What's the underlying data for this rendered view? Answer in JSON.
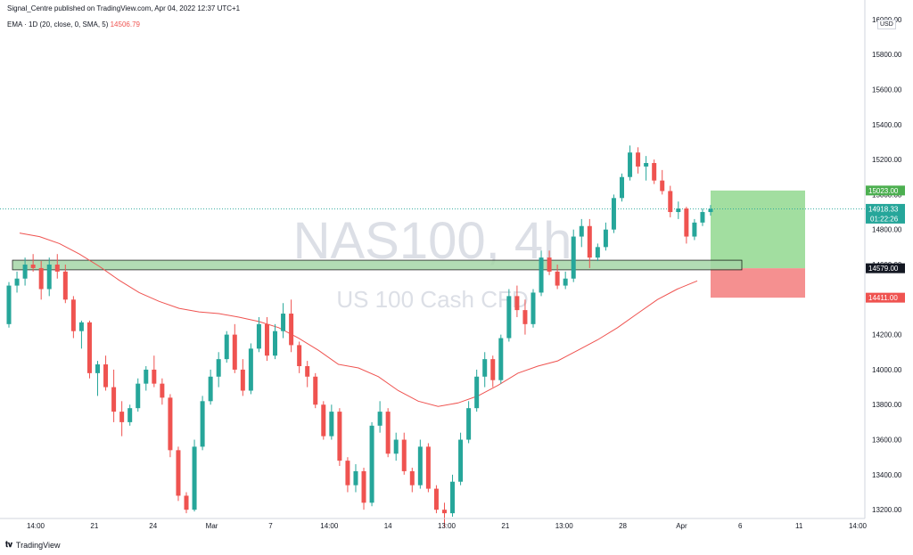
{
  "header": {
    "published": "Signal_Centre published on TradingView.com, Apr 04, 2022 12:37 UTC+1"
  },
  "indicator": {
    "label": "EMA · 1D (20, close, 0, SMA, 5)",
    "value": "14506.79"
  },
  "watermark": {
    "symbol": "NAS100, 4h",
    "name": "US 100 Cash CFD"
  },
  "price_axis": {
    "unit": "USD",
    "ticks": [
      "16000.00",
      "15800.00",
      "15600.00",
      "15400.00",
      "15200.00",
      "15000.00",
      "14800.00",
      "14600.00",
      "14400.00",
      "14200.00",
      "14000.00",
      "13800.00",
      "13600.00",
      "13400.00",
      "13200.00"
    ]
  },
  "time_axis": {
    "ticks": [
      "14:00",
      "21",
      "24",
      "Mar",
      "7",
      "14:00",
      "14",
      "13:00",
      "21",
      "13:00",
      "28",
      "Apr",
      "6",
      "11",
      "14:00"
    ]
  },
  "price_labels": {
    "target": "15023.00",
    "current": "14918.33",
    "countdown": "01:22:26",
    "entry": "14579.00",
    "stop": "14411.00"
  },
  "footer": {
    "brand": "TradingView"
  },
  "colors": {
    "up": "#26a69a",
    "down": "#ef5350",
    "ema": "#ef5350",
    "zone_fill": "#a5d6a7",
    "target_fill": "#9ddc9b",
    "stop_fill": "#f48a8a",
    "price_line": "#26a69a"
  },
  "chart_data": {
    "type": "candlestick",
    "symbol": "NAS100",
    "timeframe": "4h",
    "ylim": [
      13150,
      16050
    ],
    "levels": {
      "target": 15023,
      "current": 14918.33,
      "entry": 14579,
      "stop": 14411,
      "zone_low": 14570,
      "zone_high": 14625
    },
    "ema_1d_20": [
      14780,
      14760,
      14720,
      14660,
      14590,
      14510,
      14440,
      14390,
      14350,
      14330,
      14320,
      14300,
      14275,
      14240,
      14180,
      14110,
      14030,
      14010,
      13960,
      13880,
      13820,
      13790,
      13810,
      13850,
      13910,
      13980,
      14020,
      14050,
      14110,
      14170,
      14240,
      14320,
      14400,
      14460,
      14507
    ],
    "candles": [
      [
        14260,
        14500,
        14240,
        14480
      ],
      [
        14480,
        14560,
        14440,
        14520
      ],
      [
        14520,
        14640,
        14480,
        14600
      ],
      [
        14600,
        14660,
        14560,
        14580
      ],
      [
        14580,
        14620,
        14400,
        14460
      ],
      [
        14460,
        14640,
        14420,
        14600
      ],
      [
        14600,
        14660,
        14520,
        14560
      ],
      [
        14560,
        14600,
        14380,
        14400
      ],
      [
        14400,
        14420,
        14180,
        14220
      ],
      [
        14220,
        14280,
        14120,
        14270
      ],
      [
        14270,
        14280,
        13950,
        13980
      ],
      [
        13980,
        14050,
        13850,
        14030
      ],
      [
        14030,
        14080,
        13880,
        13900
      ],
      [
        13900,
        14000,
        13700,
        13760
      ],
      [
        13760,
        13820,
        13620,
        13700
      ],
      [
        13700,
        13800,
        13680,
        13780
      ],
      [
        13780,
        13950,
        13760,
        13920
      ],
      [
        13920,
        14020,
        13880,
        14000
      ],
      [
        14000,
        14080,
        13900,
        13920
      ],
      [
        13920,
        13950,
        13800,
        13840
      ],
      [
        13840,
        13860,
        13500,
        13540
      ],
      [
        13540,
        13560,
        13250,
        13280
      ],
      [
        13280,
        13300,
        13180,
        13200
      ],
      [
        13200,
        13600,
        13190,
        13560
      ],
      [
        13560,
        13850,
        13540,
        13820
      ],
      [
        13820,
        14000,
        13800,
        13960
      ],
      [
        13960,
        14100,
        13900,
        14060
      ],
      [
        14060,
        14220,
        14040,
        14200
      ],
      [
        14200,
        14260,
        13980,
        14000
      ],
      [
        14000,
        14060,
        13850,
        13880
      ],
      [
        13880,
        14150,
        13860,
        14120
      ],
      [
        14120,
        14300,
        14100,
        14260
      ],
      [
        14260,
        14300,
        14050,
        14080
      ],
      [
        14080,
        14260,
        14060,
        14220
      ],
      [
        14220,
        14380,
        14180,
        14320
      ],
      [
        14320,
        14400,
        14100,
        14140
      ],
      [
        14140,
        14160,
        13980,
        14020
      ],
      [
        14020,
        14050,
        13900,
        13960
      ],
      [
        13960,
        13980,
        13780,
        13800
      ],
      [
        13800,
        13820,
        13600,
        13620
      ],
      [
        13620,
        13800,
        13600,
        13760
      ],
      [
        13760,
        13780,
        13450,
        13480
      ],
      [
        13480,
        13500,
        13300,
        13340
      ],
      [
        13340,
        13460,
        13300,
        13420
      ],
      [
        13420,
        13440,
        13200,
        13240
      ],
      [
        13240,
        13700,
        13220,
        13680
      ],
      [
        13680,
        13820,
        13640,
        13760
      ],
      [
        13760,
        13780,
        13500,
        13520
      ],
      [
        13520,
        13640,
        13480,
        13600
      ],
      [
        13600,
        13640,
        13400,
        13420
      ],
      [
        13420,
        13440,
        13300,
        13340
      ],
      [
        13340,
        13600,
        13320,
        13560
      ],
      [
        13560,
        13580,
        13300,
        13320
      ],
      [
        13320,
        13340,
        13180,
        13200
      ],
      [
        13200,
        13240,
        13100,
        13180
      ],
      [
        13180,
        13400,
        13160,
        13360
      ],
      [
        13360,
        13640,
        13340,
        13600
      ],
      [
        13600,
        13820,
        13580,
        13780
      ],
      [
        13780,
        14000,
        13760,
        13960
      ],
      [
        13960,
        14100,
        13900,
        14060
      ],
      [
        14060,
        14080,
        13900,
        13940
      ],
      [
        13940,
        14200,
        13920,
        14180
      ],
      [
        14180,
        14460,
        14160,
        14420
      ],
      [
        14420,
        14480,
        14300,
        14340
      ],
      [
        14340,
        14400,
        14200,
        14260
      ],
      [
        14260,
        14460,
        14240,
        14440
      ],
      [
        14440,
        14680,
        14420,
        14640
      ],
      [
        14640,
        14680,
        14540,
        14560
      ],
      [
        14560,
        14600,
        14460,
        14480
      ],
      [
        14480,
        14560,
        14460,
        14520
      ],
      [
        14520,
        14800,
        14500,
        14760
      ],
      [
        14760,
        14860,
        14700,
        14820
      ],
      [
        14820,
        14860,
        14580,
        14640
      ],
      [
        14640,
        14720,
        14620,
        14700
      ],
      [
        14700,
        14840,
        14680,
        14800
      ],
      [
        14800,
        15000,
        14780,
        14980
      ],
      [
        14980,
        15120,
        14960,
        15100
      ],
      [
        15100,
        15280,
        15080,
        15240
      ],
      [
        15240,
        15270,
        15120,
        15160
      ],
      [
        15160,
        15220,
        15080,
        15180
      ],
      [
        15180,
        15200,
        15060,
        15080
      ],
      [
        15080,
        15140,
        15000,
        15020
      ],
      [
        15020,
        15050,
        14870,
        14900
      ],
      [
        14900,
        14960,
        14860,
        14920
      ],
      [
        14920,
        14930,
        14720,
        14760
      ],
      [
        14760,
        14860,
        14740,
        14840
      ],
      [
        14840,
        14920,
        14820,
        14900
      ],
      [
        14900,
        14940,
        14880,
        14918.33
      ]
    ]
  }
}
